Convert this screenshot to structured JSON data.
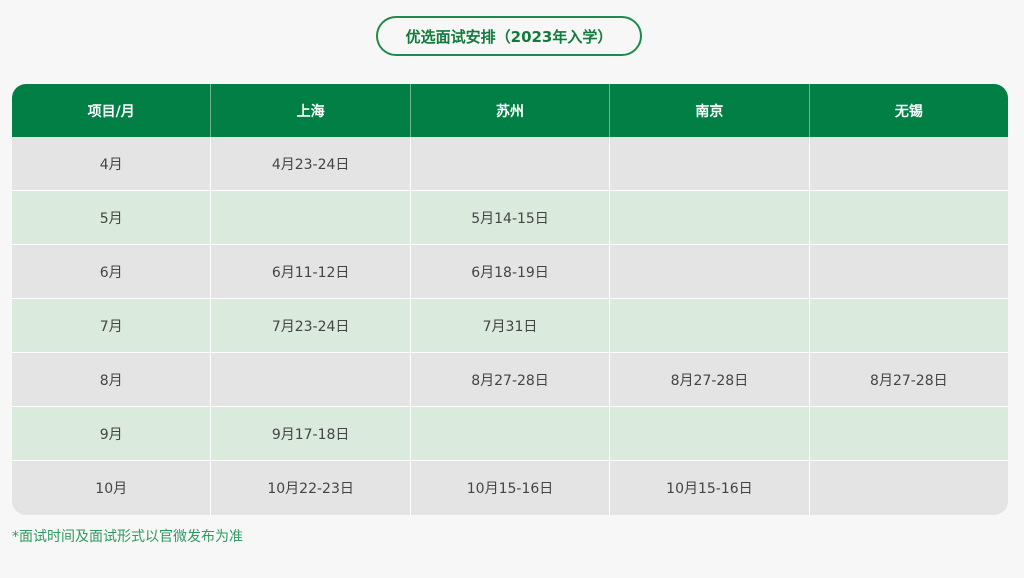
{
  "title": "优选面试安排（2023年入学）",
  "colors": {
    "header_bg": "#017f44",
    "row_gray": "#e4e4e4",
    "row_green": "#daeadd",
    "accent": "#1f8a4c"
  },
  "table": {
    "headers": [
      "项目/月",
      "上海",
      "苏州",
      "南京",
      "无锡"
    ],
    "rows": [
      [
        "4月",
        "4月23-24日",
        "",
        "",
        ""
      ],
      [
        "5月",
        "",
        "5月14-15日",
        "",
        ""
      ],
      [
        "6月",
        "6月11-12日",
        "6月18-19日",
        "",
        ""
      ],
      [
        "7月",
        "7月23-24日",
        "7月31日",
        "",
        ""
      ],
      [
        "8月",
        "",
        "8月27-28日",
        "8月27-28日",
        "8月27-28日"
      ],
      [
        "9月",
        "9月17-18日",
        "",
        "",
        ""
      ],
      [
        "10月",
        "10月22-23日",
        "10月15-16日",
        "10月15-16日",
        ""
      ]
    ]
  },
  "note": "*面试时间及面试形式以官微发布为准"
}
